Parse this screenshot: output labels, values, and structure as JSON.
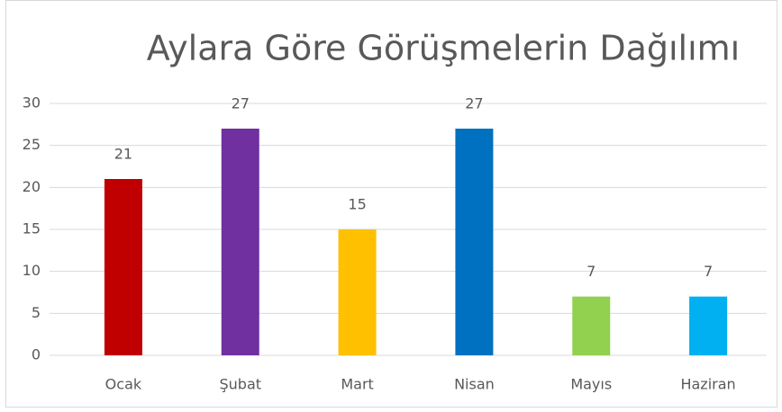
{
  "chart_data": {
    "type": "bar",
    "title": "Aylara Göre Görüşmelerin Dağılımı",
    "categories": [
      "Ocak",
      "Şubat",
      "Mart",
      "Nisan",
      "Mayıs",
      "Haziran"
    ],
    "values": [
      21,
      27,
      15,
      27,
      7,
      7
    ],
    "colors": [
      "#c00000",
      "#7030a0",
      "#ffc000",
      "#0070c0",
      "#92d050",
      "#00b0f0"
    ],
    "ylim": [
      0,
      30
    ],
    "yticks": [
      0,
      5,
      10,
      15,
      20,
      25,
      30
    ],
    "grid": true,
    "data_labels": true
  }
}
